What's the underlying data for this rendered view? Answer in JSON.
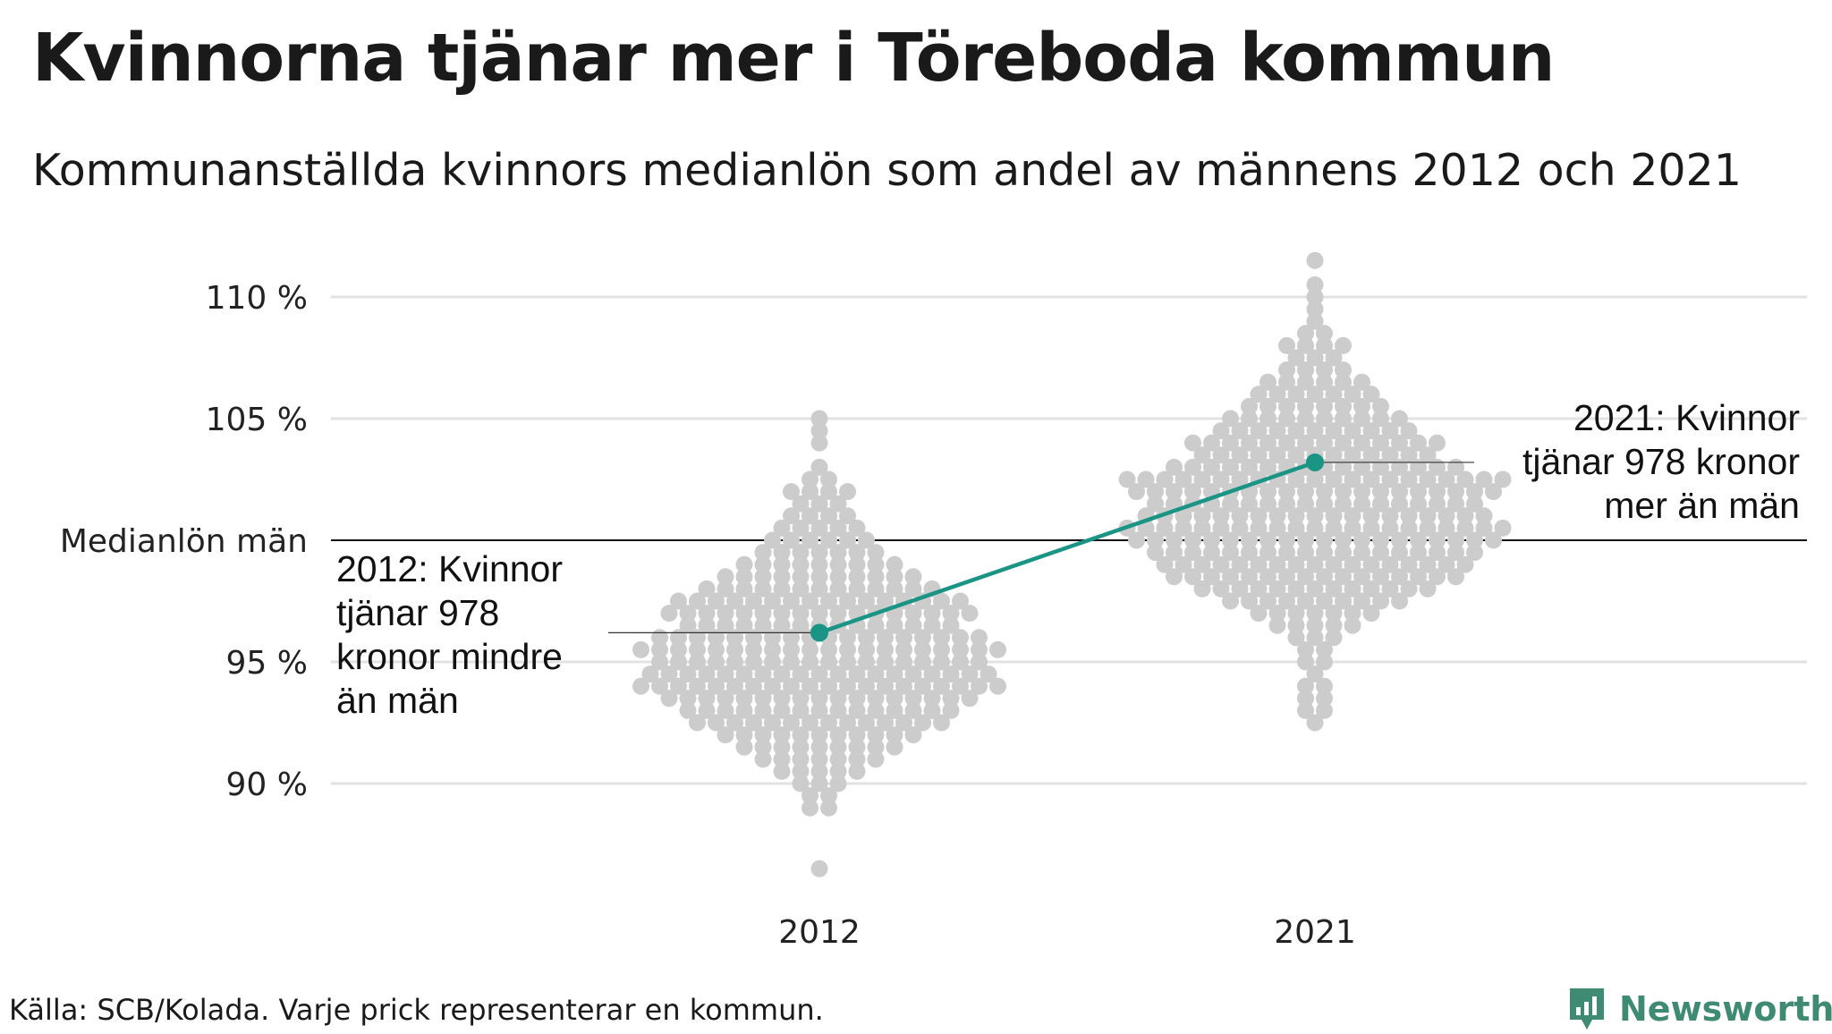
{
  "title": "Kvinnorna tjänar mer i Töreboda kommun",
  "subtitle": "Kommunanställda kvinnors medianlön som andel av männens 2012 och 2021",
  "source": "Källa: SCB/Kolada. Varje prick representerar en kommun.",
  "logo": {
    "text": "Newsworthy",
    "icon": "bar-chart-badge-icon"
  },
  "chart_data": {
    "type": "scatter",
    "x_categories": [
      "2012",
      "2021"
    ],
    "y_ticks": [
      {
        "value": 90,
        "label": "90 %"
      },
      {
        "value": 95,
        "label": "95 %"
      },
      {
        "value": 100,
        "label": "Medianlön män"
      },
      {
        "value": 105,
        "label": "105 %"
      },
      {
        "value": 110,
        "label": "110 %"
      }
    ],
    "ylim": [
      86,
      112
    ],
    "reference_line": {
      "value": 100,
      "label": "Medianlön män"
    },
    "highlight": {
      "name": "Töreboda",
      "color": "#1a9484",
      "values": [
        {
          "x": "2012",
          "y": 96.2
        },
        {
          "x": "2021",
          "y": 103.2
        }
      ]
    },
    "annotations": [
      {
        "x": "2012",
        "lines": [
          "2012: Kvinnor",
          "tjänar 978",
          "kronor mindre",
          "än män"
        ]
      },
      {
        "x": "2021",
        "lines": [
          "2021: Kvinnor",
          "tjänar 978 kronor",
          "mer än män"
        ]
      }
    ],
    "background_dot_color": "#cccccc",
    "distributions": [
      {
        "x": "2012",
        "bins": [
          {
            "y": 86.5,
            "count": 1
          },
          {
            "y": 89.0,
            "count": 2
          },
          {
            "y": 89.5,
            "count": 2
          },
          {
            "y": 90.0,
            "count": 3
          },
          {
            "y": 90.5,
            "count": 5
          },
          {
            "y": 91.0,
            "count": 7
          },
          {
            "y": 91.5,
            "count": 9
          },
          {
            "y": 92.0,
            "count": 11
          },
          {
            "y": 92.5,
            "count": 14
          },
          {
            "y": 93.0,
            "count": 15
          },
          {
            "y": 93.5,
            "count": 17
          },
          {
            "y": 94.0,
            "count": 20
          },
          {
            "y": 94.5,
            "count": 19
          },
          {
            "y": 95.0,
            "count": 18
          },
          {
            "y": 95.5,
            "count": 20
          },
          {
            "y": 96.0,
            "count": 18
          },
          {
            "y": 96.5,
            "count": 15
          },
          {
            "y": 97.0,
            "count": 17
          },
          {
            "y": 97.5,
            "count": 16
          },
          {
            "y": 98.0,
            "count": 13
          },
          {
            "y": 98.5,
            "count": 11
          },
          {
            "y": 99.0,
            "count": 9
          },
          {
            "y": 99.5,
            "count": 7
          },
          {
            "y": 100.0,
            "count": 6
          },
          {
            "y": 100.5,
            "count": 5
          },
          {
            "y": 101.0,
            "count": 4
          },
          {
            "y": 101.5,
            "count": 3
          },
          {
            "y": 102.0,
            "count": 4
          },
          {
            "y": 102.5,
            "count": 2
          },
          {
            "y": 103.0,
            "count": 1
          },
          {
            "y": 104.0,
            "count": 1
          },
          {
            "y": 104.5,
            "count": 1
          },
          {
            "y": 105.0,
            "count": 1
          }
        ]
      },
      {
        "x": "2021",
        "bins": [
          {
            "y": 92.5,
            "count": 1
          },
          {
            "y": 93.0,
            "count": 2
          },
          {
            "y": 93.5,
            "count": 2
          },
          {
            "y": 94.0,
            "count": 2
          },
          {
            "y": 94.5,
            "count": 1
          },
          {
            "y": 95.0,
            "count": 2
          },
          {
            "y": 95.5,
            "count": 2
          },
          {
            "y": 96.0,
            "count": 3
          },
          {
            "y": 96.5,
            "count": 5
          },
          {
            "y": 97.0,
            "count": 7
          },
          {
            "y": 97.5,
            "count": 10
          },
          {
            "y": 98.0,
            "count": 13
          },
          {
            "y": 98.5,
            "count": 16
          },
          {
            "y": 99.0,
            "count": 17
          },
          {
            "y": 99.5,
            "count": 18
          },
          {
            "y": 100.0,
            "count": 20
          },
          {
            "y": 100.5,
            "count": 21
          },
          {
            "y": 101.0,
            "count": 19
          },
          {
            "y": 101.5,
            "count": 18
          },
          {
            "y": 102.0,
            "count": 20
          },
          {
            "y": 102.5,
            "count": 21
          },
          {
            "y": 103.0,
            "count": 16
          },
          {
            "y": 103.5,
            "count": 13
          },
          {
            "y": 104.0,
            "count": 14
          },
          {
            "y": 104.5,
            "count": 11
          },
          {
            "y": 105.0,
            "count": 10
          },
          {
            "y": 105.5,
            "count": 8
          },
          {
            "y": 106.0,
            "count": 7
          },
          {
            "y": 106.5,
            "count": 6
          },
          {
            "y": 107.0,
            "count": 4
          },
          {
            "y": 107.5,
            "count": 3
          },
          {
            "y": 108.0,
            "count": 4
          },
          {
            "y": 108.5,
            "count": 2
          },
          {
            "y": 109.0,
            "count": 1
          },
          {
            "y": 109.5,
            "count": 1
          },
          {
            "y": 110.0,
            "count": 1
          },
          {
            "y": 110.5,
            "count": 1
          },
          {
            "y": 111.5,
            "count": 1
          }
        ]
      }
    ]
  }
}
